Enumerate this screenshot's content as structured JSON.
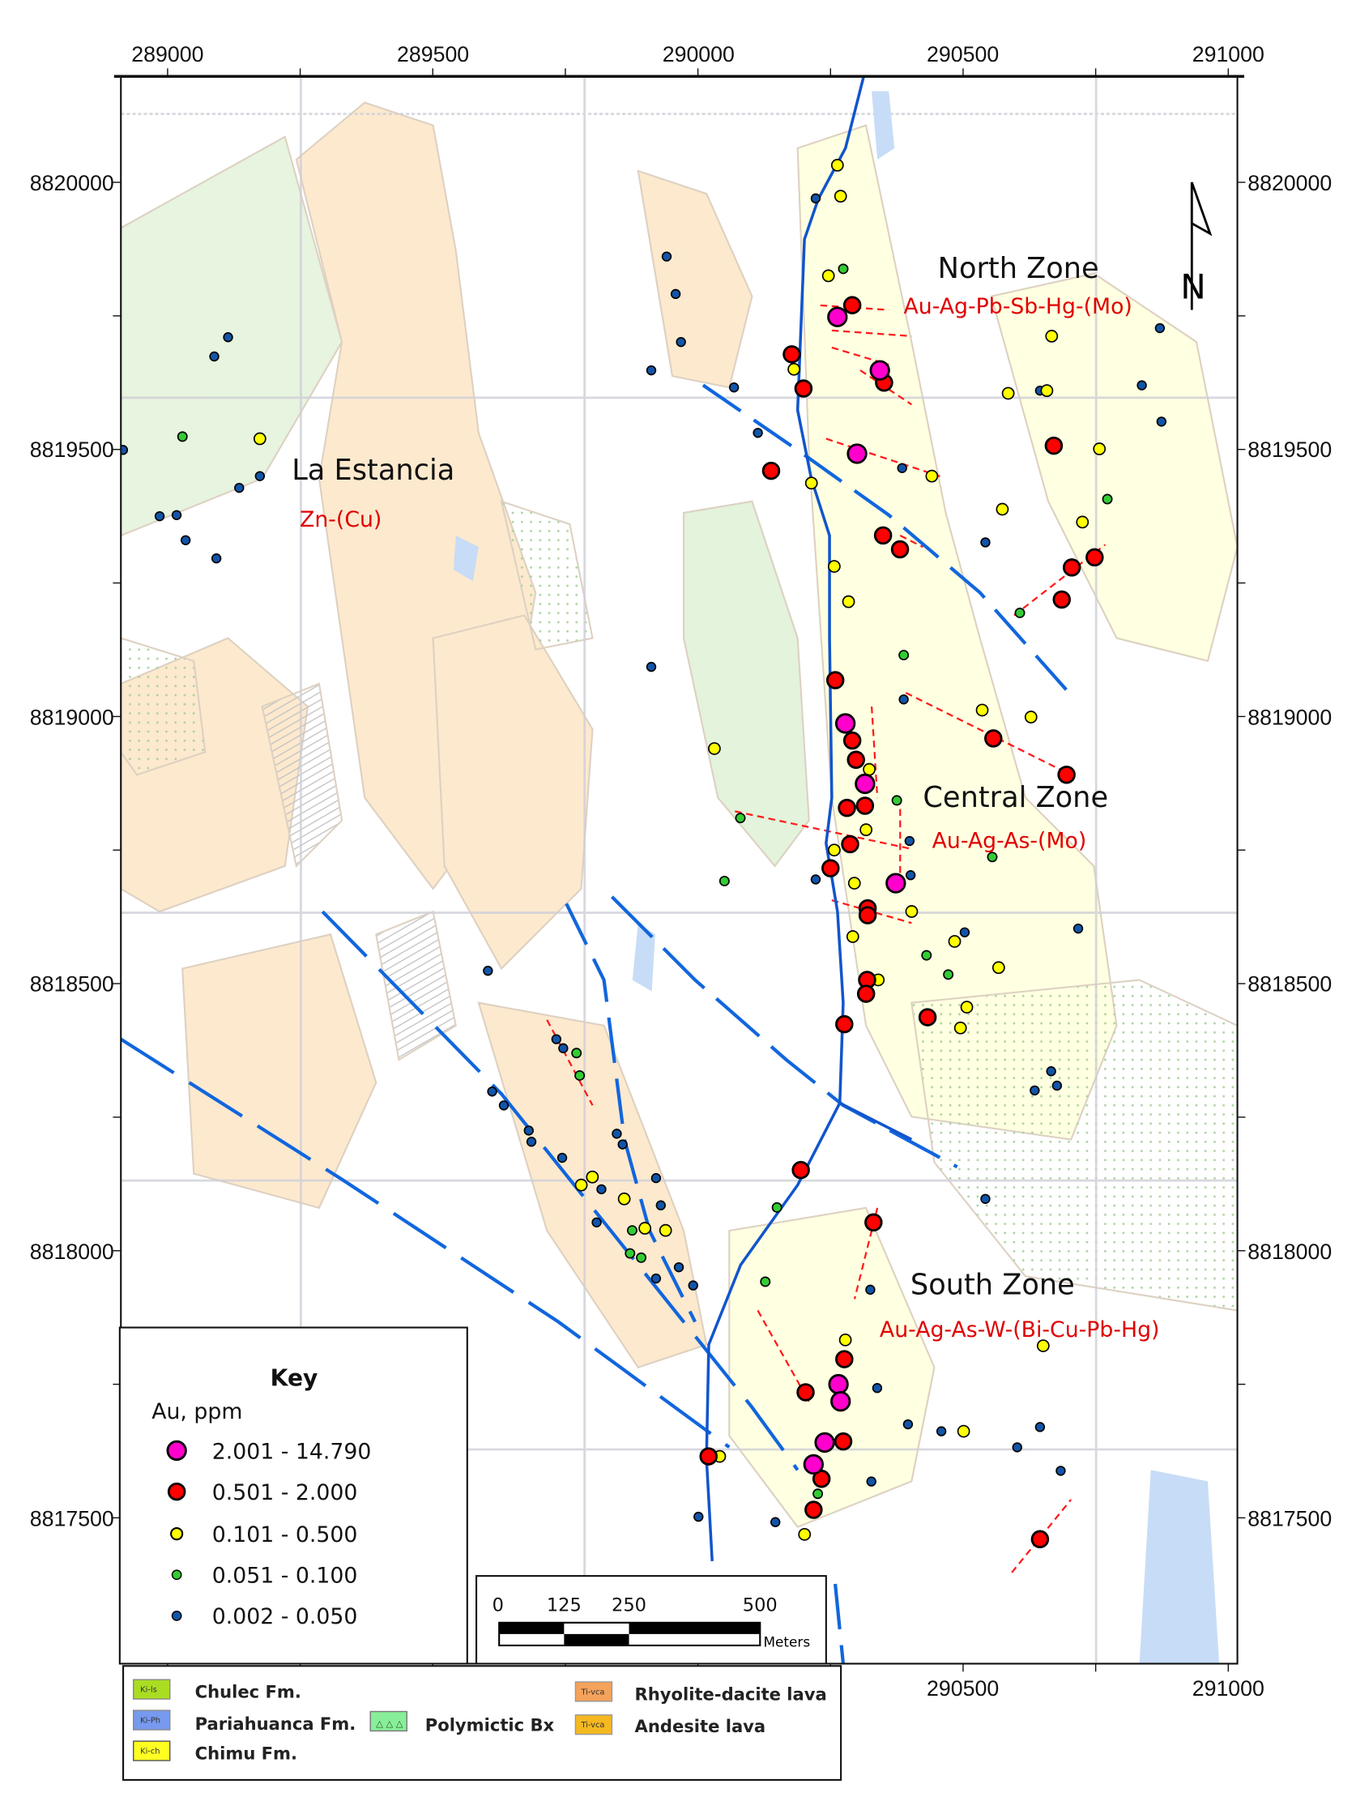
{
  "map": {
    "easting_range": [
      288912,
      291017
    ],
    "northing_range": [
      8817227,
      8820198
    ],
    "top_ticks": [
      "289000",
      "289500",
      "290000",
      "290500",
      "291000"
    ],
    "bottom_ticks": [
      "290500",
      "291000"
    ],
    "side_ticks": [
      "8820000",
      "8819500",
      "8819000",
      "8818500",
      "8818000",
      "8817500"
    ],
    "north_arrow_label": "N",
    "grid_lines": true
  },
  "zones": {
    "north": {
      "title": "North Zone",
      "subtitle": "Au-Ag-Pb-Sb-Hg-(Mo)"
    },
    "central": {
      "title": "Central Zone",
      "subtitle": "Au-Ag-As-(Mo)"
    },
    "south": {
      "title": "South Zone",
      "subtitle": "Au-Ag-As-W-(Bi-Cu-Pb-Hg)"
    },
    "estancia": {
      "title": "La Estancia",
      "subtitle": "Zn-(Cu)"
    }
  },
  "key": {
    "title": "Key",
    "subtitle": "Au, ppm",
    "classes": [
      {
        "label": "2.001 - 14.790",
        "color": "#ff00cc"
      },
      {
        "label": "0.501 - 2.000",
        "color": "#ff0000"
      },
      {
        "label": "0.101 - 0.500",
        "color": "#ffff00"
      },
      {
        "label": "0.051 - 0.100",
        "color": "#33cc33"
      },
      {
        "label": "0.002 - 0.050",
        "color": "#1155aa"
      }
    ]
  },
  "scale_bar": {
    "labels": [
      "0",
      "125",
      "250",
      "500"
    ],
    "unit": "Meters"
  },
  "geology_legend": [
    {
      "code": "Ki-ls",
      "label": "Chulec Fm.",
      "color": "#aadd22"
    },
    {
      "code": "Ki-Ph",
      "label": "Pariahuanca Fm.",
      "color": "#7799ee"
    },
    {
      "code": "Ki-ch",
      "label": "Chimu Fm.",
      "color": "#ffff22"
    },
    {
      "code": "",
      "label": "Polymictic Bx",
      "color": "#88ee99"
    },
    {
      "code": "Ti-vca",
      "label": "Rhyolite-dacite lava",
      "color": "#f5a25a"
    },
    {
      "code": "Ti-vca",
      "label": "Andesite lava",
      "color": "#f5b820"
    }
  ],
  "samples": [
    {
      "e": 290263,
      "n": 8819748,
      "c": 0
    },
    {
      "e": 290343,
      "n": 8819648,
      "c": 0
    },
    {
      "e": 290300,
      "n": 8819492,
      "c": 0
    },
    {
      "e": 290278,
      "n": 8818987,
      "c": 0
    },
    {
      "e": 290315,
      "n": 8818874,
      "c": 0
    },
    {
      "e": 290373,
      "n": 8818688,
      "c": 0
    },
    {
      "e": 290265,
      "n": 8817750,
      "c": 0
    },
    {
      "e": 290218,
      "n": 8817600,
      "c": 0
    },
    {
      "e": 290239,
      "n": 8817641,
      "c": 0
    },
    {
      "e": 290269,
      "n": 8817718,
      "c": 0
    },
    {
      "e": 290291,
      "n": 8819770,
      "c": 1
    },
    {
      "e": 290177,
      "n": 8819678,
      "c": 1
    },
    {
      "e": 290351,
      "n": 8819625,
      "c": 1
    },
    {
      "e": 290199,
      "n": 8819614,
      "c": 1
    },
    {
      "e": 290138,
      "n": 8819460,
      "c": 1
    },
    {
      "e": 290349,
      "n": 8819339,
      "c": 1
    },
    {
      "e": 290381,
      "n": 8819313,
      "c": 1
    },
    {
      "e": 290671,
      "n": 8819507,
      "c": 1
    },
    {
      "e": 290705,
      "n": 8819279,
      "c": 1
    },
    {
      "e": 290748,
      "n": 8819298,
      "c": 1
    },
    {
      "e": 290686,
      "n": 8819219,
      "c": 1
    },
    {
      "e": 290259,
      "n": 8819068,
      "c": 1
    },
    {
      "e": 290291,
      "n": 8818955,
      "c": 1
    },
    {
      "e": 290298,
      "n": 8818919,
      "c": 1
    },
    {
      "e": 290281,
      "n": 8818829,
      "c": 1
    },
    {
      "e": 290315,
      "n": 8818833,
      "c": 1
    },
    {
      "e": 290287,
      "n": 8818761,
      "c": 1
    },
    {
      "e": 290250,
      "n": 8818716,
      "c": 1
    },
    {
      "e": 290320,
      "n": 8818641,
      "c": 1
    },
    {
      "e": 290320,
      "n": 8818628,
      "c": 1
    },
    {
      "e": 290319,
      "n": 8818507,
      "c": 1
    },
    {
      "e": 290317,
      "n": 8818481,
      "c": 1
    },
    {
      "e": 290276,
      "n": 8818424,
      "c": 1
    },
    {
      "e": 290433,
      "n": 8818437,
      "c": 1
    },
    {
      "e": 290557,
      "n": 8818959,
      "c": 1
    },
    {
      "e": 290695,
      "n": 8818891,
      "c": 1
    },
    {
      "e": 290276,
      "n": 8817797,
      "c": 1
    },
    {
      "e": 290203,
      "n": 8817735,
      "c": 1
    },
    {
      "e": 290274,
      "n": 8817643,
      "c": 1
    },
    {
      "e": 290233,
      "n": 8817573,
      "c": 1
    },
    {
      "e": 290218,
      "n": 8817515,
      "c": 1
    },
    {
      "e": 290020,
      "n": 8817615,
      "c": 1
    },
    {
      "e": 290331,
      "n": 8818053,
      "c": 1
    },
    {
      "e": 290194,
      "n": 8818151,
      "c": 1
    },
    {
      "e": 290645,
      "n": 8817460,
      "c": 1
    },
    {
      "e": 290263,
      "n": 8820032,
      "c": 2
    },
    {
      "e": 290269,
      "n": 8819974,
      "c": 2
    },
    {
      "e": 290246,
      "n": 8819825,
      "c": 2
    },
    {
      "e": 290181,
      "n": 8819650,
      "c": 2
    },
    {
      "e": 290441,
      "n": 8819450,
      "c": 2
    },
    {
      "e": 290667,
      "n": 8819712,
      "c": 2
    },
    {
      "e": 290585,
      "n": 8819605,
      "c": 2
    },
    {
      "e": 290658,
      "n": 8819610,
      "c": 2
    },
    {
      "e": 290757,
      "n": 8819501,
      "c": 2
    },
    {
      "e": 290574,
      "n": 8819388,
      "c": 2
    },
    {
      "e": 290725,
      "n": 8819364,
      "c": 2
    },
    {
      "e": 290257,
      "n": 8819281,
      "c": 2
    },
    {
      "e": 290284,
      "n": 8819215,
      "c": 2
    },
    {
      "e": 290214,
      "n": 8819437,
      "c": 2
    },
    {
      "e": 289174,
      "n": 8819520,
      "c": 2
    },
    {
      "e": 290536,
      "n": 8819012,
      "c": 2
    },
    {
      "e": 290628,
      "n": 8818999,
      "c": 2
    },
    {
      "e": 290031,
      "n": 8818940,
      "c": 2
    },
    {
      "e": 290323,
      "n": 8818901,
      "c": 2
    },
    {
      "e": 290317,
      "n": 8818788,
      "c": 2
    },
    {
      "e": 290257,
      "n": 8818750,
      "c": 2
    },
    {
      "e": 290295,
      "n": 8818688,
      "c": 2
    },
    {
      "e": 290292,
      "n": 8818588,
      "c": 2
    },
    {
      "e": 290403,
      "n": 8818635,
      "c": 2
    },
    {
      "e": 290484,
      "n": 8818579,
      "c": 2
    },
    {
      "e": 290567,
      "n": 8818530,
      "c": 2
    },
    {
      "e": 290507,
      "n": 8818456,
      "c": 2
    },
    {
      "e": 290495,
      "n": 8818417,
      "c": 2
    },
    {
      "e": 290340,
      "n": 8818507,
      "c": 2
    },
    {
      "e": 289780,
      "n": 8818123,
      "c": 2
    },
    {
      "e": 289801,
      "n": 8818138,
      "c": 2
    },
    {
      "e": 289900,
      "n": 8818042,
      "c": 2
    },
    {
      "e": 289861,
      "n": 8818097,
      "c": 2
    },
    {
      "e": 289939,
      "n": 8818038,
      "c": 2
    },
    {
      "e": 290041,
      "n": 8817615,
      "c": 2
    },
    {
      "e": 290278,
      "n": 8817833,
      "c": 2
    },
    {
      "e": 290651,
      "n": 8817822,
      "c": 2
    },
    {
      "e": 290501,
      "n": 8817662,
      "c": 2
    },
    {
      "e": 290201,
      "n": 8817469,
      "c": 2
    },
    {
      "e": 289028,
      "n": 8819524,
      "c": 3
    },
    {
      "e": 290274,
      "n": 8819838,
      "c": 3
    },
    {
      "e": 290772,
      "n": 8819407,
      "c": 3
    },
    {
      "e": 290607,
      "n": 8819194,
      "c": 3
    },
    {
      "e": 290388,
      "n": 8819115,
      "c": 3
    },
    {
      "e": 290375,
      "n": 8818843,
      "c": 3
    },
    {
      "e": 290080,
      "n": 8818810,
      "c": 3
    },
    {
      "e": 290050,
      "n": 8818692,
      "c": 3
    },
    {
      "e": 290431,
      "n": 8818553,
      "c": 3
    },
    {
      "e": 290472,
      "n": 8818517,
      "c": 3
    },
    {
      "e": 290555,
      "n": 8818737,
      "c": 3
    },
    {
      "e": 289771,
      "n": 8818370,
      "c": 3
    },
    {
      "e": 289777,
      "n": 8818328,
      "c": 3
    },
    {
      "e": 289876,
      "n": 8818038,
      "c": 3
    },
    {
      "e": 289872,
      "n": 8817995,
      "c": 3
    },
    {
      "e": 289893,
      "n": 8817987,
      "c": 3
    },
    {
      "e": 290149,
      "n": 8818081,
      "c": 3
    },
    {
      "e": 290127,
      "n": 8817942,
      "c": 3
    },
    {
      "e": 290226,
      "n": 8817545,
      "c": 3
    },
    {
      "e": 288916,
      "n": 8819499,
      "c": 4
    },
    {
      "e": 289114,
      "n": 8819710,
      "c": 4
    },
    {
      "e": 289088,
      "n": 8819674,
      "c": 4
    },
    {
      "e": 288985,
      "n": 8819375,
      "c": 4
    },
    {
      "e": 289017,
      "n": 8819377,
      "c": 4
    },
    {
      "e": 289034,
      "n": 8819330,
      "c": 4
    },
    {
      "e": 289135,
      "n": 8819428,
      "c": 4
    },
    {
      "e": 289174,
      "n": 8819450,
      "c": 4
    },
    {
      "e": 289092,
      "n": 8819296,
      "c": 4
    },
    {
      "e": 289941,
      "n": 8819861,
      "c": 4
    },
    {
      "e": 289958,
      "n": 8819791,
      "c": 4
    },
    {
      "e": 289968,
      "n": 8819701,
      "c": 4
    },
    {
      "e": 289912,
      "n": 8819648,
      "c": 4
    },
    {
      "e": 290068,
      "n": 8819616,
      "c": 4
    },
    {
      "e": 290113,
      "n": 8819531,
      "c": 4
    },
    {
      "e": 290222,
      "n": 8819970,
      "c": 4
    },
    {
      "e": 290871,
      "n": 8819727,
      "c": 4
    },
    {
      "e": 290837,
      "n": 8819620,
      "c": 4
    },
    {
      "e": 290874,
      "n": 8819552,
      "c": 4
    },
    {
      "e": 290645,
      "n": 8819610,
      "c": 4
    },
    {
      "e": 290385,
      "n": 8819465,
      "c": 4
    },
    {
      "e": 289912,
      "n": 8819093,
      "c": 4
    },
    {
      "e": 290542,
      "n": 8819326,
      "c": 4
    },
    {
      "e": 290388,
      "n": 8819032,
      "c": 4
    },
    {
      "e": 290399,
      "n": 8818767,
      "c": 4
    },
    {
      "e": 290503,
      "n": 8818596,
      "c": 4
    },
    {
      "e": 290717,
      "n": 8818603,
      "c": 4
    },
    {
      "e": 290401,
      "n": 8818703,
      "c": 4
    },
    {
      "e": 290222,
      "n": 8818695,
      "c": 4
    },
    {
      "e": 289604,
      "n": 8818524,
      "c": 4
    },
    {
      "e": 290635,
      "n": 8818300,
      "c": 4
    },
    {
      "e": 290666,
      "n": 8818336,
      "c": 4
    },
    {
      "e": 290677,
      "n": 8818309,
      "c": 4
    },
    {
      "e": 289612,
      "n": 8818298,
      "c": 4
    },
    {
      "e": 289634,
      "n": 8818272,
      "c": 4
    },
    {
      "e": 289733,
      "n": 8818396,
      "c": 4
    },
    {
      "e": 289746,
      "n": 8818379,
      "c": 4
    },
    {
      "e": 289681,
      "n": 8818225,
      "c": 4
    },
    {
      "e": 289686,
      "n": 8818204,
      "c": 4
    },
    {
      "e": 289744,
      "n": 8818174,
      "c": 4
    },
    {
      "e": 289847,
      "n": 8818219,
      "c": 4
    },
    {
      "e": 289858,
      "n": 8818199,
      "c": 4
    },
    {
      "e": 289809,
      "n": 8818053,
      "c": 4
    },
    {
      "e": 289921,
      "n": 8818136,
      "c": 4
    },
    {
      "e": 289930,
      "n": 8818085,
      "c": 4
    },
    {
      "e": 289964,
      "n": 8817969,
      "c": 4
    },
    {
      "e": 289921,
      "n": 8817948,
      "c": 4
    },
    {
      "e": 289991,
      "n": 8817935,
      "c": 4
    },
    {
      "e": 289818,
      "n": 8818115,
      "c": 4
    },
    {
      "e": 290325,
      "n": 8817927,
      "c": 4
    },
    {
      "e": 290338,
      "n": 8817743,
      "c": 4
    },
    {
      "e": 290396,
      "n": 8817675,
      "c": 4
    },
    {
      "e": 290459,
      "n": 8817662,
      "c": 4
    },
    {
      "e": 290645,
      "n": 8817670,
      "c": 4
    },
    {
      "e": 290602,
      "n": 8817632,
      "c": 4
    },
    {
      "e": 290684,
      "n": 8817588,
      "c": 4
    },
    {
      "e": 290327,
      "n": 8817568,
      "c": 4
    },
    {
      "e": 290146,
      "n": 8817492,
      "c": 4
    },
    {
      "e": 290001,
      "n": 8817502,
      "c": 4
    },
    {
      "e": 290542,
      "n": 8818097,
      "c": 4
    }
  ]
}
